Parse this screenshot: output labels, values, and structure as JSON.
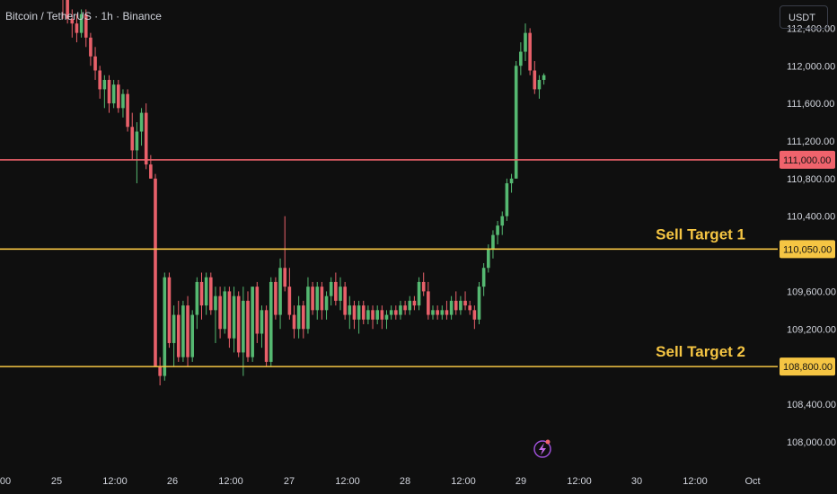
{
  "header": {
    "title": "Bitcoin / TetherUS · 1h · Binance",
    "currency_label": "USDT"
  },
  "colors": {
    "background": "#0f0f0f",
    "bull": "#55b871",
    "bear": "#e8606a",
    "resistance": "#f0636c",
    "target": "#f5c543",
    "axis_text": "#d1d4dc"
  },
  "chart_data": {
    "type": "candlestick",
    "grid": false,
    "ylim": [
      107750,
      112700
    ],
    "y_ticks": [
      {
        "value": 112400,
        "label": "112,400.00"
      },
      {
        "value": 112000,
        "label": "112,000.00"
      },
      {
        "value": 111600,
        "label": "111,600.00"
      },
      {
        "value": 111200,
        "label": "111,200.00"
      },
      {
        "value": 110800,
        "label": "110,800.00"
      },
      {
        "value": 110400,
        "label": "110,400.00"
      },
      {
        "value": 109600,
        "label": "109,600.00"
      },
      {
        "value": 109200,
        "label": "109,200.00"
      },
      {
        "value": 108400,
        "label": "108,400.00"
      },
      {
        "value": 108000,
        "label": "108,000.00"
      }
    ],
    "x_ticks": [
      "00",
      "25",
      "12:00",
      "26",
      "12:00",
      "27",
      "12:00",
      "28",
      "12:00",
      "29",
      "12:00",
      "30",
      "12:00",
      "Oct"
    ],
    "levels": [
      {
        "name": "resistance",
        "value": 111000,
        "label": "111,000.00",
        "color": "#f0636c",
        "annotation": ""
      },
      {
        "name": "sell-target-1",
        "value": 110050,
        "label": "110,050.00",
        "color": "#f5c543",
        "annotation": "Sell Target 1"
      },
      {
        "name": "sell-target-2",
        "value": 108800,
        "label": "108,800.00",
        "color": "#f5c543",
        "annotation": "Sell Target 2"
      }
    ],
    "candles": [
      [
        112800,
        112900,
        112500,
        112700
      ],
      [
        112700,
        112800,
        112450,
        112500
      ],
      [
        112500,
        112600,
        112300,
        112450
      ],
      [
        112450,
        112550,
        112250,
        112350
      ],
      [
        112350,
        112600,
        112300,
        112550
      ],
      [
        112550,
        112600,
        112200,
        112300
      ],
      [
        112300,
        112350,
        112000,
        112100
      ],
      [
        112100,
        112200,
        111850,
        111950
      ],
      [
        111950,
        112000,
        111650,
        111750
      ],
      [
        111750,
        111900,
        111550,
        111850
      ],
      [
        111850,
        111900,
        111500,
        111600
      ],
      [
        111600,
        111850,
        111550,
        111800
      ],
      [
        111800,
        111850,
        111500,
        111550
      ],
      [
        111550,
        111750,
        111450,
        111700
      ],
      [
        111700,
        111750,
        111300,
        111350
      ],
      [
        111350,
        111500,
        111000,
        111100
      ],
      [
        111100,
        111400,
        110750,
        111300
      ],
      [
        111300,
        111550,
        111150,
        111500
      ],
      [
        111500,
        111600,
        110900,
        110950
      ],
      [
        110950,
        111050,
        110800,
        110800
      ],
      [
        110800,
        110850,
        108800,
        108800
      ],
      [
        108800,
        108900,
        108600,
        108700
      ],
      [
        108700,
        109800,
        108650,
        109750
      ],
      [
        109750,
        109800,
        109000,
        109050
      ],
      [
        109050,
        109450,
        108800,
        109350
      ],
      [
        109350,
        109500,
        108850,
        108900
      ],
      [
        108900,
        109500,
        108850,
        109450
      ],
      [
        109450,
        109550,
        108800,
        108900
      ],
      [
        108900,
        109400,
        108850,
        109350
      ],
      [
        109350,
        109750,
        109200,
        109700
      ],
      [
        109700,
        109800,
        109300,
        109450
      ],
      [
        109450,
        109800,
        109350,
        109750
      ],
      [
        109750,
        109800,
        109350,
        109400
      ],
      [
        109400,
        109650,
        109050,
        109550
      ],
      [
        109550,
        109650,
        109100,
        109200
      ],
      [
        109200,
        109650,
        109150,
        109600
      ],
      [
        109600,
        109650,
        109000,
        109100
      ],
      [
        109100,
        109650,
        108950,
        109550
      ],
      [
        109550,
        109600,
        108900,
        108950
      ],
      [
        108950,
        109650,
        108700,
        109500
      ],
      [
        109500,
        109600,
        108850,
        108900
      ],
      [
        108900,
        109650,
        108850,
        109650
      ],
      [
        109650,
        109700,
        109050,
        109150
      ],
      [
        109150,
        109450,
        109000,
        109400
      ],
      [
        109400,
        109450,
        108800,
        108850
      ],
      [
        108850,
        109750,
        108800,
        109700
      ],
      [
        109700,
        109750,
        109300,
        109350
      ],
      [
        109350,
        109950,
        109200,
        109850
      ],
      [
        109850,
        110400,
        109600,
        109650
      ],
      [
        109650,
        109850,
        109300,
        109350
      ],
      [
        109350,
        109450,
        109100,
        109200
      ],
      [
        109200,
        109550,
        109100,
        109450
      ],
      [
        109450,
        109500,
        109100,
        109200
      ],
      [
        109200,
        109750,
        109150,
        109650
      ],
      [
        109650,
        109700,
        109350,
        109400
      ],
      [
        109400,
        109700,
        109300,
        109650
      ],
      [
        109650,
        109700,
        109300,
        109400
      ],
      [
        109400,
        109600,
        109300,
        109550
      ],
      [
        109550,
        109750,
        109450,
        109700
      ],
      [
        109700,
        109800,
        109450,
        109500
      ],
      [
        109500,
        109750,
        109400,
        109650
      ],
      [
        109650,
        109700,
        109300,
        109350
      ],
      [
        109350,
        109550,
        109200,
        109450
      ],
      [
        109450,
        109500,
        109200,
        109300
      ],
      [
        109300,
        109500,
        109150,
        109450
      ],
      [
        109450,
        109500,
        109250,
        109300
      ],
      [
        109300,
        109450,
        109250,
        109400
      ],
      [
        109400,
        109450,
        109200,
        109300
      ],
      [
        109300,
        109450,
        109250,
        109400
      ],
      [
        109400,
        109450,
        109200,
        109300
      ],
      [
        109300,
        109400,
        109200,
        109350
      ],
      [
        109350,
        109450,
        109300,
        109400
      ],
      [
        109400,
        109450,
        109300,
        109350
      ],
      [
        109350,
        109500,
        109300,
        109450
      ],
      [
        109450,
        109500,
        109350,
        109400
      ],
      [
        109400,
        109550,
        109350,
        109500
      ],
      [
        109500,
        109550,
        109400,
        109450
      ],
      [
        109450,
        109750,
        109400,
        109700
      ],
      [
        109700,
        109800,
        109550,
        109600
      ],
      [
        109600,
        109700,
        109300,
        109350
      ],
      [
        109350,
        109450,
        109300,
        109400
      ],
      [
        109400,
        109450,
        109300,
        109350
      ],
      [
        109350,
        109450,
        109300,
        109400
      ],
      [
        109400,
        109500,
        109300,
        109350
      ],
      [
        109350,
        109550,
        109300,
        109500
      ],
      [
        109500,
        109600,
        109350,
        109400
      ],
      [
        109400,
        109550,
        109350,
        109500
      ],
      [
        109500,
        109600,
        109400,
        109450
      ],
      [
        109450,
        109500,
        109350,
        109400
      ],
      [
        109400,
        109450,
        109200,
        109300
      ],
      [
        109300,
        109700,
        109250,
        109650
      ],
      [
        109650,
        109900,
        109550,
        109850
      ],
      [
        109850,
        110100,
        109800,
        110050
      ],
      [
        110050,
        110250,
        109950,
        110200
      ],
      [
        110200,
        110350,
        110100,
        110300
      ],
      [
        110300,
        110450,
        110200,
        110400
      ],
      [
        110400,
        110800,
        110350,
        110750
      ],
      [
        110750,
        110850,
        110650,
        110800
      ],
      [
        110800,
        112050,
        110800,
        112000
      ],
      [
        112000,
        112250,
        111900,
        112150
      ],
      [
        112150,
        112450,
        112050,
        112350
      ],
      [
        112350,
        112400,
        111900,
        111950
      ],
      [
        111950,
        112050,
        111700,
        111750
      ],
      [
        111750,
        111900,
        111650,
        111850
      ],
      [
        111850,
        111920,
        111800,
        111900
      ]
    ]
  },
  "footer": {
    "badge_icon": "lightning-icon"
  }
}
